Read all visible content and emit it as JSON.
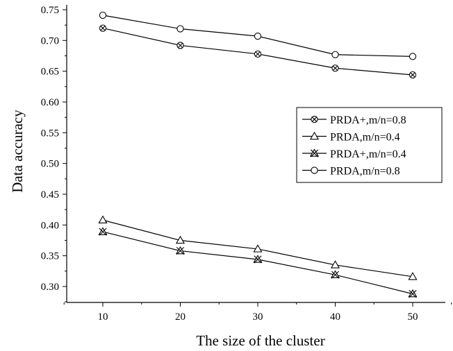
{
  "chart_data": {
    "type": "line",
    "title": "",
    "xlabel": "The size of the cluster",
    "ylabel": "Data accuracy",
    "x": [
      10,
      20,
      30,
      40,
      50
    ],
    "xticks": [
      "10",
      "20",
      "30",
      "40",
      "50"
    ],
    "xlim": [
      5,
      55
    ],
    "ylim": [
      0.28,
      0.75
    ],
    "yticks": [
      "0.30",
      "0.35",
      "0.40",
      "0.45",
      "0.50",
      "0.55",
      "0.60",
      "0.65",
      "0.70",
      "0.75"
    ],
    "grid": false,
    "legend_position": "right",
    "series": [
      {
        "name": "PRDA+,m/n=0.8",
        "marker": "circle-x",
        "values": [
          0.72,
          0.692,
          0.678,
          0.655,
          0.644
        ]
      },
      {
        "name": "PRDA,m/n=0.4",
        "marker": "triangle",
        "values": [
          0.408,
          0.375,
          0.361,
          0.335,
          0.316
        ]
      },
      {
        "name": "PRDA+,m/n=0.4",
        "marker": "triangle-x",
        "values": [
          0.389,
          0.358,
          0.344,
          0.319,
          0.288
        ]
      },
      {
        "name": "PRDA,m/n=0.8",
        "marker": "circle",
        "values": [
          0.741,
          0.719,
          0.707,
          0.677,
          0.674
        ]
      }
    ],
    "colors": {
      "line": "#000000",
      "background": "#ffffff"
    }
  }
}
